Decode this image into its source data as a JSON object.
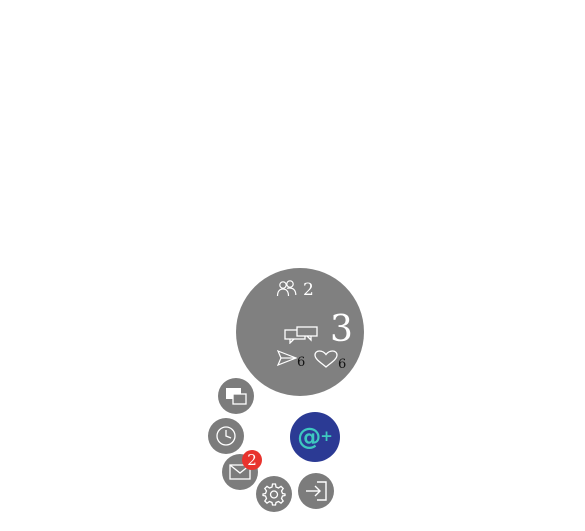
{
  "stats": {
    "friends_count": "2",
    "comments_count": "3",
    "sent_count": "6",
    "likes_count": "6"
  },
  "menu": {
    "messages_badge": "2",
    "main_symbol": "@",
    "main_plus": "+"
  },
  "icons": {
    "friends": "people-icon",
    "comments": "chat-bubbles-icon",
    "sent": "paper-plane-icon",
    "likes": "heart-icon",
    "screens": "windows-icon",
    "history": "clock-icon",
    "messages": "envelope-icon",
    "settings": "gear-icon",
    "logout": "sign-in-arrow-icon"
  },
  "colors": {
    "circle": "#808080",
    "buttons": "#7c7c7c",
    "main": "#2b3a94",
    "accent": "#3ec8c0",
    "badge": "#e8332e"
  }
}
